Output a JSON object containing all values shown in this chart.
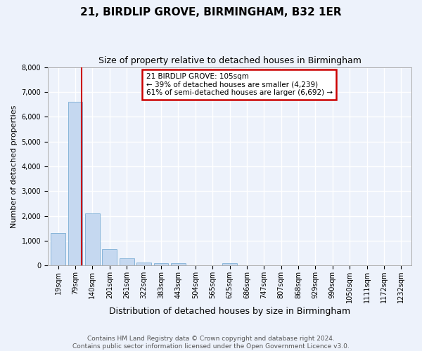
{
  "title": "21, BIRDLIP GROVE, BIRMINGHAM, B32 1ER",
  "subtitle": "Size of property relative to detached houses in Birmingham",
  "xlabel": "Distribution of detached houses by size in Birmingham",
  "ylabel": "Number of detached properties",
  "bar_labels": [
    "19sqm",
    "79sqm",
    "140sqm",
    "201sqm",
    "261sqm",
    "322sqm",
    "383sqm",
    "443sqm",
    "504sqm",
    "565sqm",
    "625sqm",
    "686sqm",
    "747sqm",
    "807sqm",
    "868sqm",
    "929sqm",
    "990sqm",
    "1050sqm",
    "1111sqm",
    "1172sqm",
    "1232sqm"
  ],
  "bar_values": [
    1300,
    6600,
    2100,
    650,
    300,
    130,
    80,
    80,
    0,
    0,
    80,
    0,
    0,
    0,
    0,
    0,
    0,
    0,
    0,
    0,
    0
  ],
  "bar_color": "#c5d8f0",
  "bar_edge_color": "#7aadd4",
  "ylim": [
    0,
    8000
  ],
  "yticks": [
    0,
    1000,
    2000,
    3000,
    4000,
    5000,
    6000,
    7000,
    8000
  ],
  "property_line_x": 1.38,
  "annotation_title": "21 BIRDLIP GROVE: 105sqm",
  "annotation_line1": "← 39% of detached houses are smaller (4,239)",
  "annotation_line2": "61% of semi-detached houses are larger (6,692) →",
  "annotation_box_color": "#ffffff",
  "annotation_box_edge": "#cc0000",
  "vline_color": "#cc0000",
  "footer_line1": "Contains HM Land Registry data © Crown copyright and database right 2024.",
  "footer_line2": "Contains public sector information licensed under the Open Government Licence v3.0.",
  "bg_color": "#edf2fb",
  "plot_bg_color": "#edf2fb",
  "grid_color": "#ffffff",
  "title_fontsize": 11,
  "subtitle_fontsize": 9,
  "xlabel_fontsize": 9,
  "ylabel_fontsize": 8,
  "tick_fontsize": 7,
  "annot_fontsize": 7.5,
  "footer_fontsize": 6.5
}
